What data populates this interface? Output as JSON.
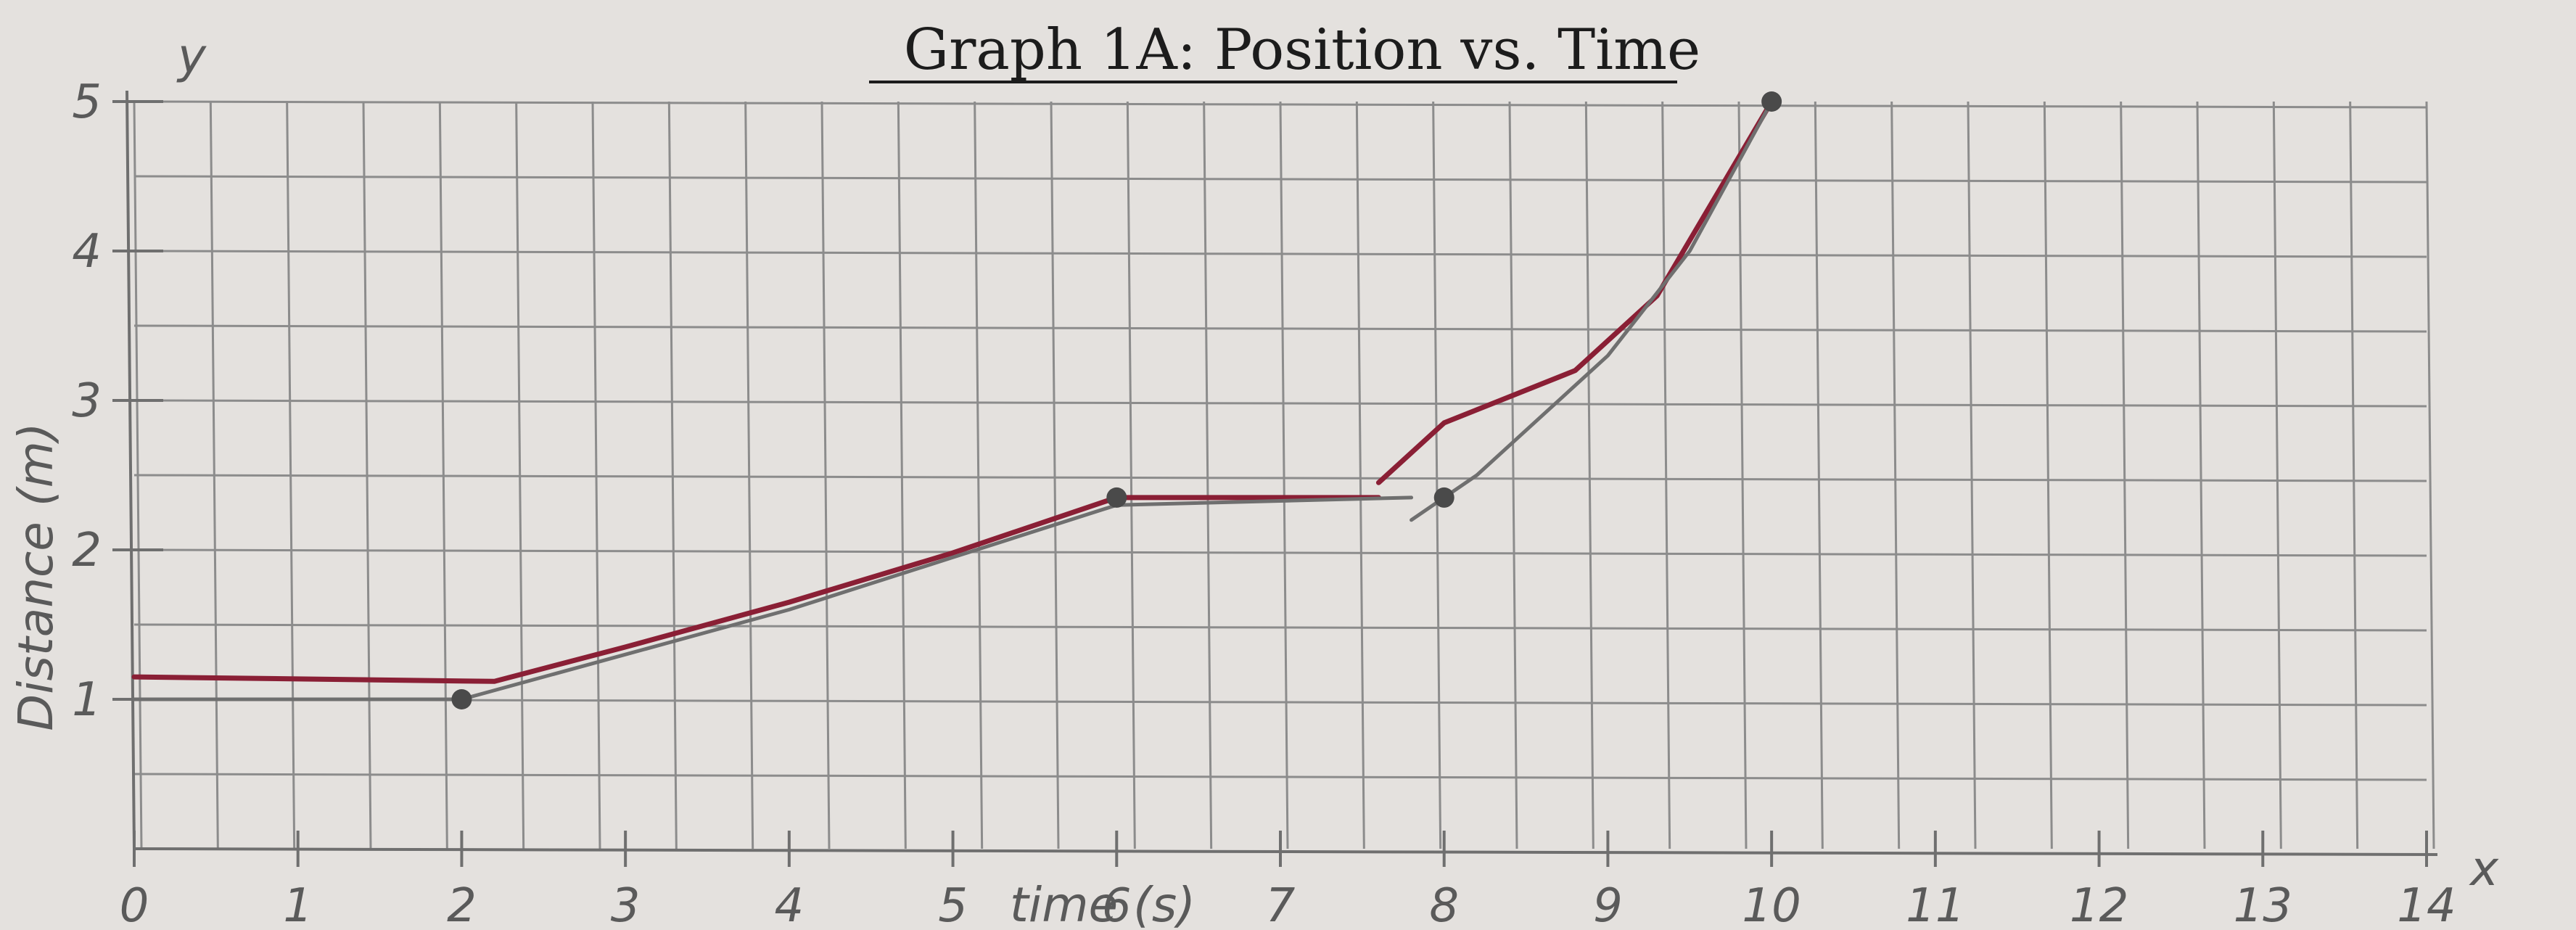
{
  "chart_data": {
    "type": "line",
    "title": "Graph 1A: Position vs. Time",
    "xlabel": "time (s)",
    "ylabel": "Distance (m)",
    "x_axis_letter": "x",
    "y_axis_letter": "y",
    "xlim": [
      0,
      14
    ],
    "ylim": [
      0,
      5
    ],
    "grid": true,
    "x_ticks": [
      "0",
      "1",
      "2",
      "3",
      "4",
      "5",
      "6",
      "7",
      "8",
      "9",
      "10",
      "11",
      "12",
      "13",
      "14"
    ],
    "y_ticks": [
      "1",
      "2",
      "3",
      "4",
      "5"
    ],
    "series": [
      {
        "color": "#8a1f35",
        "x": [
          0,
          2.2,
          3,
          4,
          5,
          6,
          7.6
        ],
        "y": [
          1.15,
          1.12,
          1.35,
          1.65,
          1.98,
          2.35,
          2.35
        ]
      },
      {
        "color": "#8a1f35",
        "x": [
          7.6,
          8,
          8.8,
          9.3,
          10
        ],
        "y": [
          2.45,
          2.85,
          3.2,
          3.7,
          5
        ]
      },
      {
        "color": "#6f6f6f",
        "x": [
          0,
          2,
          3,
          4,
          5,
          6,
          7.8
        ],
        "y": [
          1,
          1,
          1.3,
          1.6,
          1.95,
          2.3,
          2.35
        ]
      },
      {
        "color": "#6f6f6f",
        "x": [
          7.8,
          8.2,
          9,
          9.5,
          10
        ],
        "y": [
          2.2,
          2.5,
          3.3,
          4,
          5
        ]
      }
    ],
    "points": [
      {
        "x": 2,
        "y": 1
      },
      {
        "x": 6,
        "y": 2.35
      },
      {
        "x": 8,
        "y": 2.35
      },
      {
        "x": 10,
        "y": 5
      }
    ],
    "colors": {
      "paper": "#e4e1de",
      "grid": "#8c8c8c",
      "pencil": "#6f6f6f",
      "pen": "#8a1f35"
    }
  }
}
